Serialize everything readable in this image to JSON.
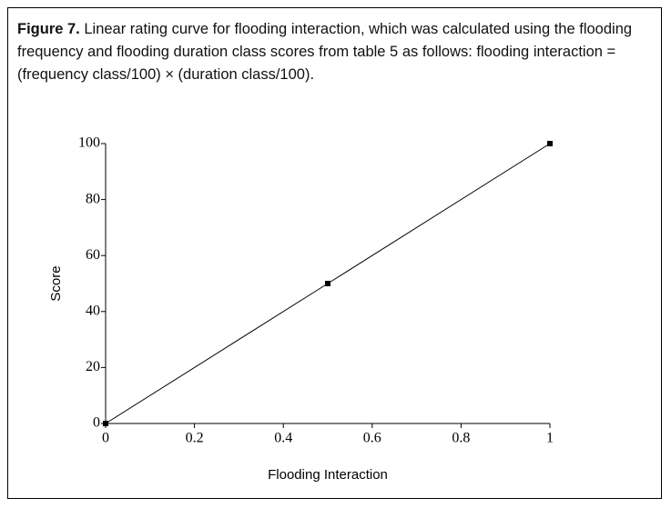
{
  "figure": {
    "label": "Figure 7.",
    "caption": "Linear rating curve for flooding interaction, which was calculated using the flooding frequency and flooding duration class scores from table 5 as follows: flooding interaction = (frequency class/100) × (duration class/100)."
  },
  "chart_data": {
    "type": "line",
    "x": [
      0,
      0.5,
      1
    ],
    "values": [
      0,
      50,
      100
    ],
    "color": "#000000",
    "xlabel": "Flooding Interaction",
    "ylabel": "Score",
    "xlim": [
      0,
      1
    ],
    "ylim": [
      0,
      100
    ],
    "xticks": [
      0,
      0.2,
      0.4,
      0.6,
      0.8,
      1
    ],
    "yticks": [
      0,
      20,
      40,
      60,
      80,
      100
    ],
    "grid": false,
    "markers": true
  }
}
